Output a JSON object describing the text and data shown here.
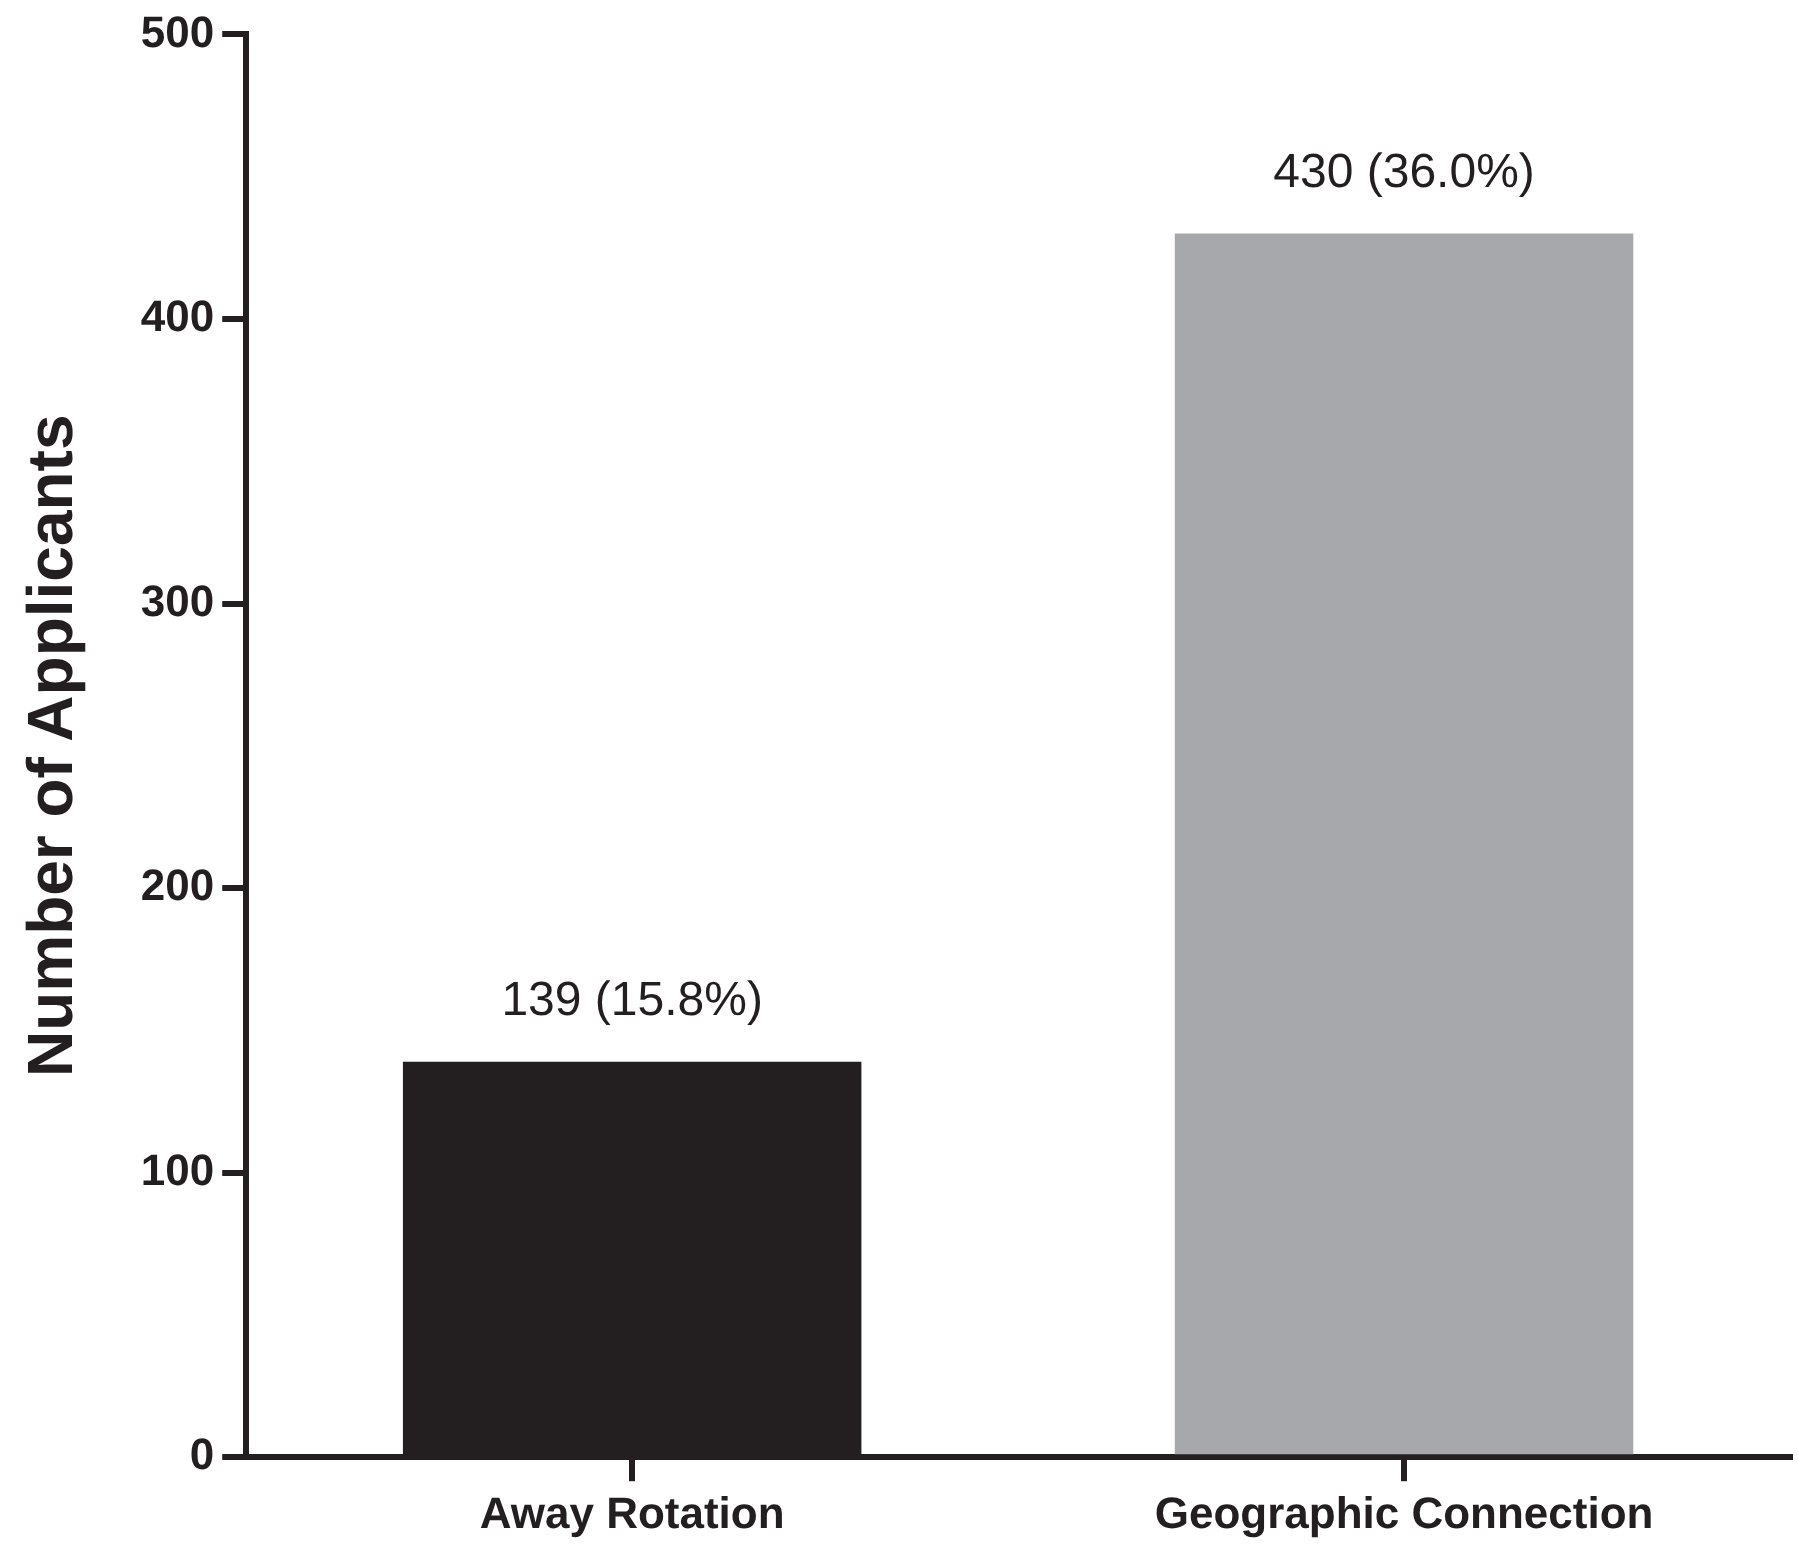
{
  "chart_data": {
    "type": "bar",
    "ylabel": "Number of Applicants",
    "categories": [
      "Away Rotation",
      "Geographic Connection"
    ],
    "values": [
      139,
      430
    ],
    "colors": [
      "#231f20",
      "#a7a8ab"
    ],
    "value_labels": [
      "139 (15.8%)",
      "430 (36.0%)"
    ],
    "ylim": [
      0,
      500
    ],
    "yticks": [
      0,
      100,
      200,
      300,
      400,
      500
    ],
    "grid": false,
    "legend": false
  }
}
